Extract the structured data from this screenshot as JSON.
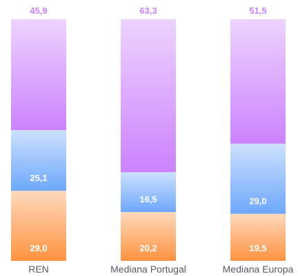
{
  "chart_data": {
    "type": "bar",
    "stacked": true,
    "categories": [
      "REN",
      "Mediana Portugal",
      "Mediana Europa"
    ],
    "series": [
      {
        "values": [
          29.0,
          20.2,
          19.5
        ],
        "labels": [
          "29,0",
          "20,2",
          "19,5"
        ],
        "color": "#fd9340"
      },
      {
        "values": [
          25.1,
          16.5,
          29.0
        ],
        "labels": [
          "25,1",
          "16,5",
          "29,0"
        ],
        "color": "#6ea8fb"
      },
      {
        "values": [
          45.9,
          63.3,
          51.5
        ],
        "labels": [
          "45,9",
          "63,3",
          "51,5"
        ],
        "color": "#cc82fd"
      }
    ],
    "top_label_color": "#cc82fd",
    "ylim": [
      0,
      100
    ],
    "grid": false,
    "legend": "none"
  }
}
